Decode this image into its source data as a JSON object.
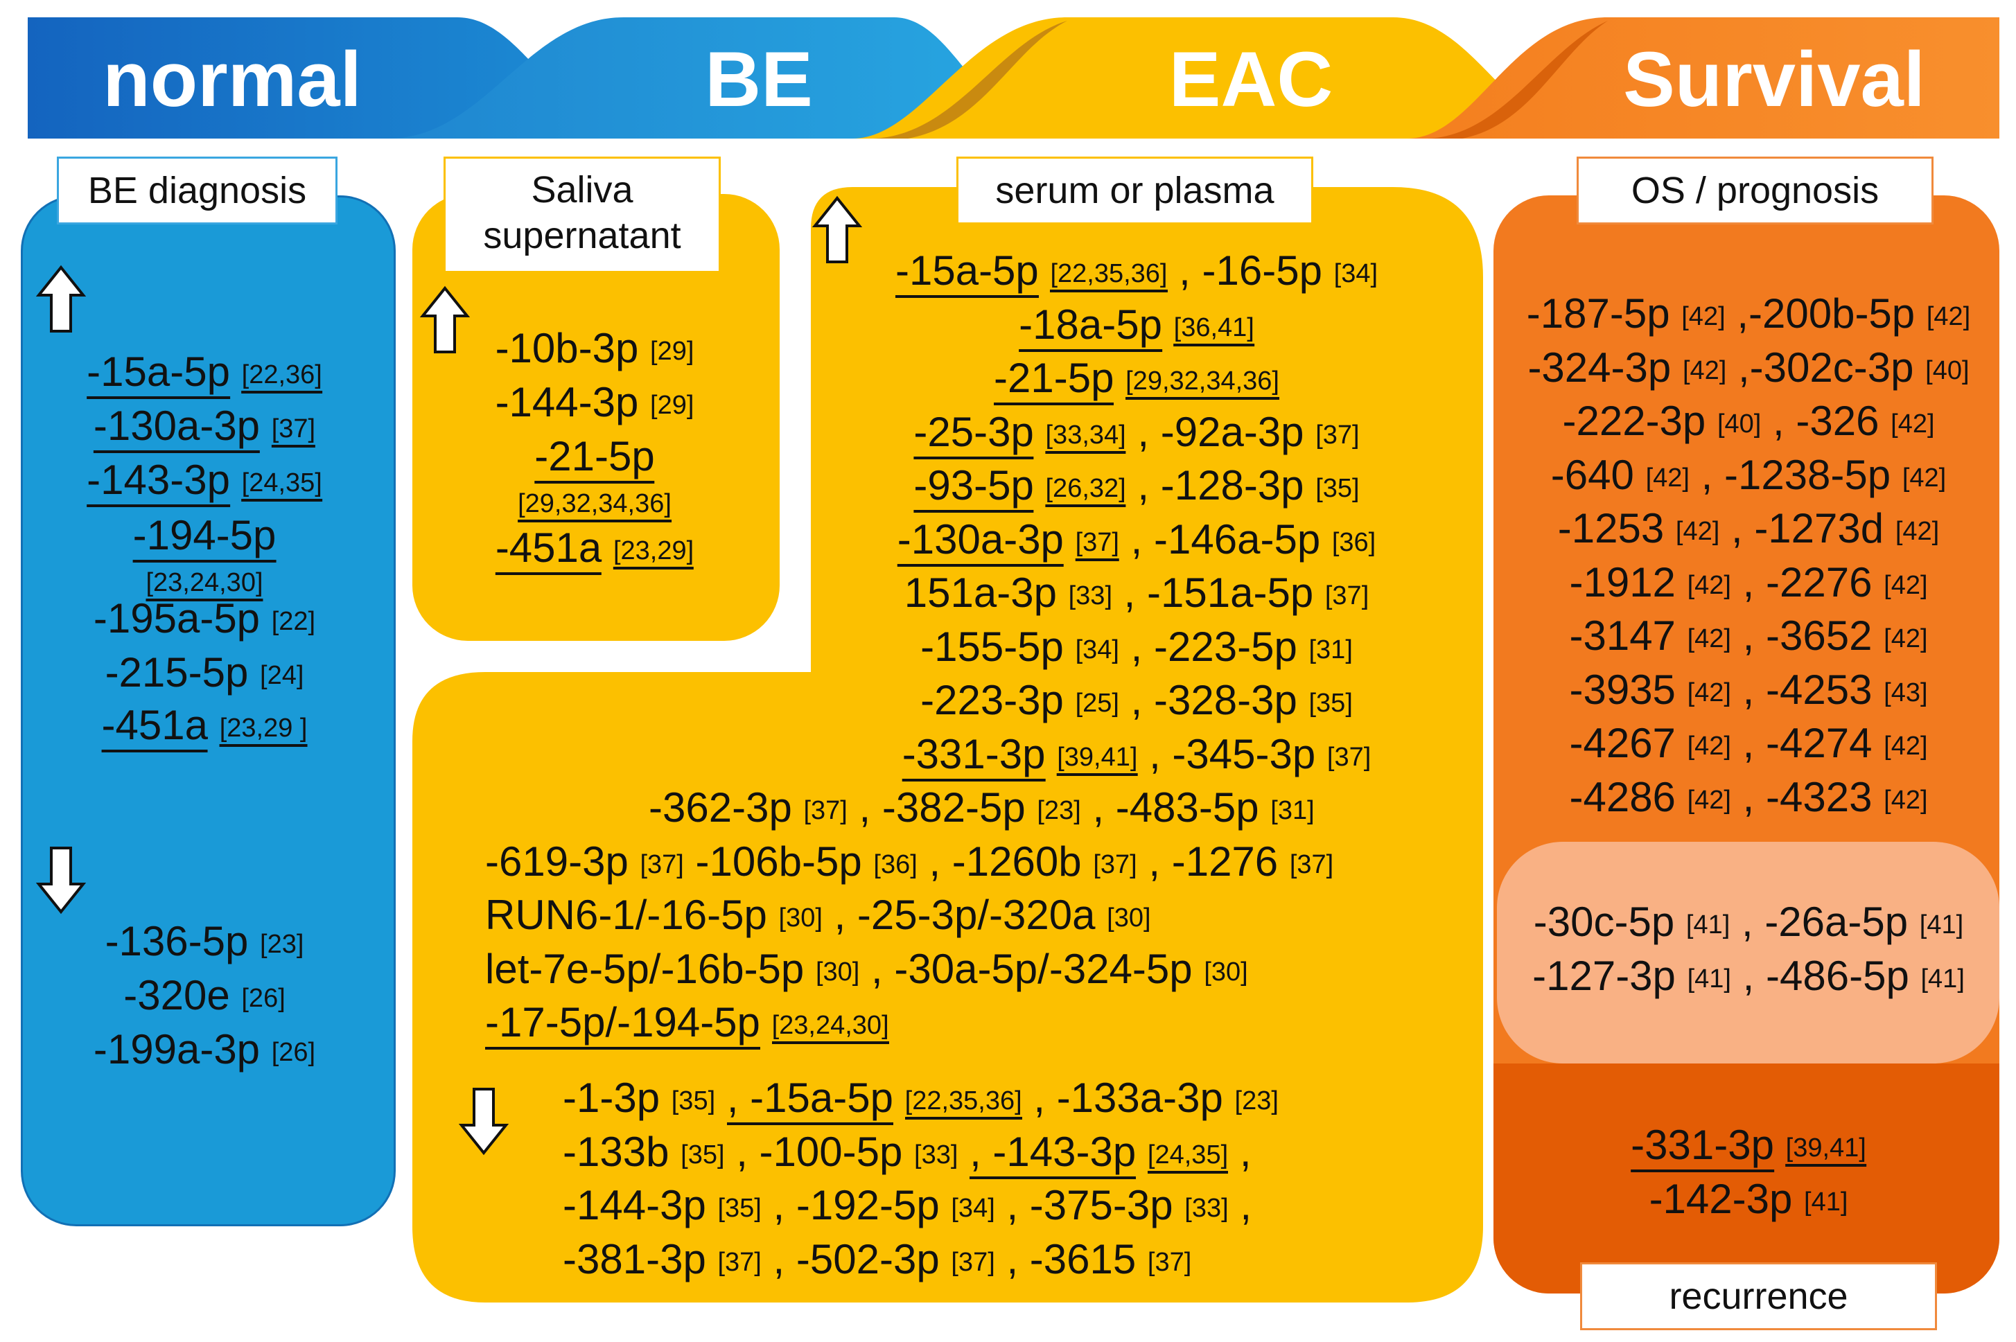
{
  "stages": {
    "normal": "normal",
    "be": "BE",
    "eac": "EAC",
    "survival": "Survival"
  },
  "colors": {
    "blue_dark": "#1565c0",
    "blue_mid": "#1a9ad7",
    "yellow": "#fcc000",
    "yellow_dark": "#d19000",
    "orange": "#f27a1f",
    "orange_light": "#f9b184",
    "orange_dark": "#e35c05"
  },
  "icons": {
    "up": "up-arrow-icon",
    "down": "down-arrow-icon"
  },
  "be_diagnosis": {
    "label": "BE diagnosis",
    "up": [
      {
        "name": "-15a-5p",
        "ref": "[22,36]",
        "underline": true
      },
      {
        "name": "-130a-3p",
        "ref": "[37]",
        "underline": true
      },
      {
        "name": "-143-3p",
        "ref": "[24,35]",
        "underline": true
      },
      {
        "name": "-194-5p",
        "ref": "",
        "underline": true
      },
      {
        "name": "",
        "ref": "[23,24,30]",
        "underline": true
      },
      {
        "name": "-195a-5p",
        "ref": "[22]",
        "underline": false
      },
      {
        "name": "-215-5p",
        "ref": "[24]",
        "underline": false
      },
      {
        "name": "-451a",
        "ref": "[23,29 ]",
        "underline": true
      }
    ],
    "down": [
      {
        "name": "-136-5p",
        "ref": "[23]"
      },
      {
        "name": "-320e",
        "ref": "[26]"
      },
      {
        "name": "-199a-3p",
        "ref": "[26]"
      }
    ]
  },
  "saliva": {
    "label_line1": "Saliva",
    "label_line2": "supernatant",
    "up": [
      {
        "name": "-10b-3p",
        "ref": "[29]",
        "underline": false
      },
      {
        "name": "-144-3p",
        "ref": "[29]",
        "underline": false
      },
      {
        "name": "-21-5p",
        "ref": "",
        "underline": true
      },
      {
        "name": "",
        "ref": "[29,32,34,36]",
        "underline": true
      },
      {
        "name": "-451a",
        "ref": "[23,29]",
        "underline": true
      }
    ]
  },
  "serum": {
    "label": "serum or plasma",
    "up": [
      {
        "text": "-15a-5p",
        "ref": "[22,35,36]",
        "text2": ", -16-5p",
        "ref2": "[34]"
      },
      {
        "text": "-18a-5p",
        "ref": "[36,41]",
        "text2": "",
        "ref2": ""
      },
      {
        "text": "-21-5p",
        "ref": "[29,32,34,36]",
        "text2": "",
        "ref2": ""
      },
      {
        "text": "-25-3p",
        "ref": "[33,34]",
        "text2": ", -92a-3p",
        "ref2": "[37]"
      },
      {
        "text": "-93-5p",
        "ref": "[26,32]",
        "text2": ", -128-3p",
        "ref2": "[35]"
      },
      {
        "text": "-130a-3p",
        "ref": "[37]",
        "text2": ", -146a-5p",
        "ref2": "[36]"
      },
      {
        "text": "151a-3p",
        "ref": "[33]",
        "text2": ", -151a-5p",
        "ref2": "[37]"
      },
      {
        "text": "-155-5p",
        "ref": "[34]",
        "text2": ", -223-5p",
        "ref2": "[31]"
      },
      {
        "text": "-223-3p",
        "ref": "[25]",
        "text2": ", -328-3p",
        "ref2": "[35]"
      },
      {
        "text": "-331-3p",
        "ref": "[39,41]",
        "text2": ", -345-3p",
        "ref2": "[37]"
      },
      {
        "text": "-362-3p",
        "ref": "[37]",
        "text2": ", -382-5p",
        "ref2": "[23]",
        "text3": ", -483-5p",
        "ref3": "[31]"
      },
      {
        "text": "-619-3p",
        "ref": "[37]",
        "text2": "-106b-5p",
        "ref2": "[36]",
        "text3": ", -1260b",
        "ref3": "[37]",
        "text4": ", -1276",
        "ref4": "[37]"
      },
      {
        "text": "RUN6-1/-16-5p",
        "ref": "[30]",
        "text2": ", -25-3p/-320a",
        "ref2": "[30]"
      },
      {
        "text": "let-7e-5p/-16b-5p",
        "ref": "[30]",
        "text2": ", -30a-5p/-324-5p",
        "ref2": "[30]"
      },
      {
        "text": "-17-5p/-194-5p",
        "ref": "[23,24,30]",
        "text2": "",
        "ref2": ""
      }
    ],
    "down": [
      {
        "text": "-1-3p",
        "ref": "[35]",
        "text2": ", -15a-5p",
        "ref2": "[22,35,36]",
        "text3": ", -133a-3p",
        "ref3": "[23]"
      },
      {
        "text": "-133b",
        "ref": "[35]",
        "text2": ", -100-5p",
        "ref2": "[33]",
        "text3": ", -143-3p",
        "ref3": "[24,35]",
        "text4": ","
      },
      {
        "text": "-144-3p",
        "ref": "[35]",
        "text2": ", -192-5p",
        "ref2": "[34]",
        "text3": ", -375-3p",
        "ref3": "[33]",
        "text4": ","
      },
      {
        "text": "-381-3p",
        "ref": "[37]",
        "text2": ", -502-3p",
        "ref2": "[37]",
        "text3": ", -3615",
        "ref3": "[37]"
      }
    ]
  },
  "os": {
    "label": "OS / prognosis",
    "items": [
      {
        "a": "-187-5p",
        "ra": "[42]",
        "b": ",-200b-5p",
        "rb": "[42]"
      },
      {
        "a": "-324-3p",
        "ra": "[42]",
        "b": ",-302c-3p",
        "rb": "[40]"
      },
      {
        "a": "-222-3p",
        "ra": "[40]",
        "b": ", -326",
        "rb": "[42]"
      },
      {
        "a": "-640",
        "ra": "[42]",
        "b": ", -1238-5p",
        "rb": "[42]"
      },
      {
        "a": "-1253",
        "ra": "[42]",
        "b": ", -1273d",
        "rb": "[42]"
      },
      {
        "a": "-1912",
        "ra": "[42]",
        "b": ", -2276",
        "rb": "[42]"
      },
      {
        "a": "-3147",
        "ra": "[42]",
        "b": ", -3652",
        "rb": "[42]"
      },
      {
        "a": "-3935",
        "ra": "[42]",
        "b": ", -4253",
        "rb": "[43]"
      },
      {
        "a": "-4267",
        "ra": "[42]",
        "b": ", -4274",
        "rb": "[42]"
      },
      {
        "a": "-4286",
        "ra": "[42]",
        "b": ", -4323",
        "rb": "[42]"
      }
    ],
    "mid": [
      {
        "a": "-30c-5p",
        "ra": "[41]",
        "b": ", -26a-5p",
        "rb": "[41]"
      },
      {
        "a": "-127-3p",
        "ra": "[41]",
        "b": ", -486-5p",
        "rb": "[41]"
      }
    ],
    "recurrence": [
      {
        "a": "-331-3p",
        "ra": "[39,41]"
      },
      {
        "a": "-142-3p",
        "ra": "[41]"
      }
    ],
    "recurrence_label": "recurrence"
  }
}
